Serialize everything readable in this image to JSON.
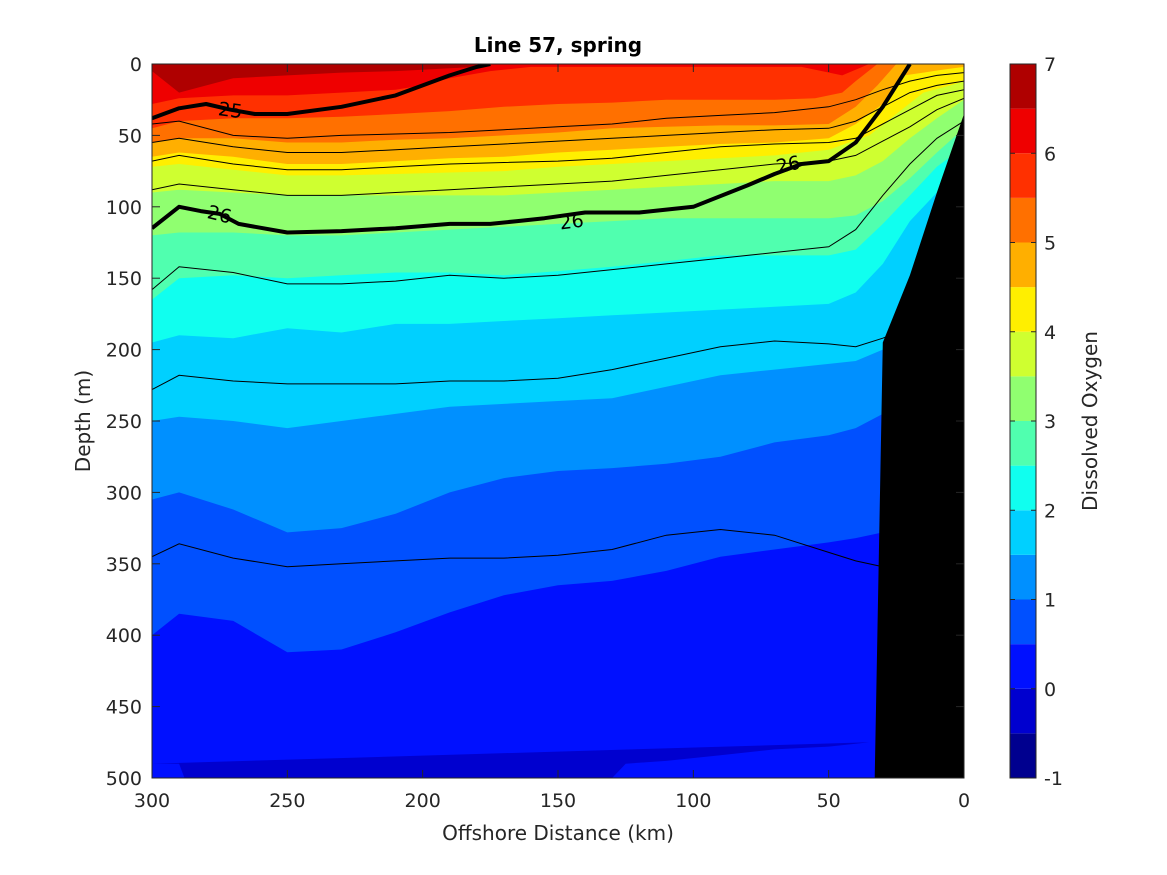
{
  "chart_data": {
    "type": "contour",
    "title": "Line 57, spring",
    "xlabel": "Offshore Distance (km)",
    "ylabel": "Depth (m)",
    "xlim": [
      300,
      0
    ],
    "ylim": [
      500,
      0
    ],
    "x_reversed": true,
    "y_reversed": true,
    "xticks": [
      300,
      250,
      200,
      150,
      100,
      50,
      0
    ],
    "yticks": [
      0,
      50,
      100,
      150,
      200,
      250,
      300,
      350,
      400,
      450,
      500
    ],
    "colorbar": {
      "label": "Dissolved Oxygen",
      "range": [
        -1,
        7
      ],
      "ticks": [
        -1,
        0,
        1,
        2,
        3,
        4,
        5,
        6,
        7
      ],
      "levels": [
        -1,
        -0.5,
        0,
        0.5,
        1,
        1.5,
        2,
        2.5,
        3,
        3.5,
        4,
        4.5,
        5,
        5.5,
        6,
        6.5,
        7
      ],
      "colors": [
        "#00008F",
        "#0000CF",
        "#0010FF",
        "#0050FF",
        "#0090FF",
        "#00D0FF",
        "#10FFEF",
        "#50FFAF",
        "#90FF70",
        "#CFFF30",
        "#FFEF00",
        "#FFAF00",
        "#FF7000",
        "#FF3000",
        "#EF0000",
        "#AF0000"
      ]
    },
    "filled_boundaries": [
      {
        "level": 6.5,
        "x": [
          300,
          290,
          270,
          250,
          230,
          210,
          200,
          190,
          180,
          175
        ],
        "y": [
          5,
          20,
          10,
          8,
          6,
          5,
          4,
          3,
          2,
          0
        ]
      },
      {
        "level": 6.0,
        "x": [
          300,
          290,
          270,
          250,
          230,
          210,
          200,
          190,
          175,
          160,
          140,
          120,
          100,
          80,
          60,
          45,
          35
        ],
        "y": [
          28,
          24,
          22,
          22,
          20,
          18,
          15,
          10,
          5,
          2,
          2,
          2,
          2,
          2,
          2,
          8,
          0
        ]
      },
      {
        "level": 5.5,
        "x": [
          300,
          290,
          270,
          250,
          230,
          210,
          190,
          170,
          150,
          130,
          110,
          90,
          70,
          55,
          45,
          40,
          32
        ],
        "y": [
          45,
          40,
          38,
          38,
          37,
          35,
          33,
          30,
          28,
          27,
          25,
          25,
          25,
          24,
          20,
          12,
          0
        ]
      },
      {
        "level": 5.0,
        "x": [
          300,
          290,
          270,
          250,
          230,
          210,
          190,
          170,
          150,
          130,
          110,
          90,
          70,
          50,
          40,
          32,
          25
        ],
        "y": [
          55,
          52,
          52,
          55,
          55,
          53,
          52,
          50,
          48,
          45,
          44,
          43,
          43,
          42,
          30,
          15,
          0
        ]
      },
      {
        "level": 4.5,
        "x": [
          300,
          290,
          270,
          250,
          230,
          210,
          190,
          170,
          150,
          130,
          110,
          90,
          70,
          50,
          40,
          30,
          22,
          15,
          8,
          0
        ],
        "y": [
          65,
          62,
          65,
          70,
          70,
          68,
          66,
          65,
          62,
          60,
          58,
          56,
          55,
          52,
          42,
          28,
          8,
          6,
          4,
          2
        ]
      },
      {
        "level": 4.0,
        "x": [
          300,
          290,
          270,
          250,
          230,
          210,
          190,
          170,
          150,
          130,
          110,
          90,
          70,
          50,
          35,
          25,
          15,
          5,
          0
        ],
        "y": [
          72,
          70,
          74,
          78,
          78,
          77,
          76,
          75,
          72,
          70,
          68,
          66,
          64,
          60,
          50,
          35,
          20,
          15,
          12
        ]
      },
      {
        "level": 3.5,
        "x": [
          300,
          290,
          270,
          250,
          230,
          210,
          190,
          170,
          150,
          130,
          110,
          90,
          70,
          50,
          40,
          30,
          20,
          10,
          0
        ],
        "y": [
          90,
          88,
          90,
          92,
          92,
          92,
          92,
          92,
          90,
          88,
          86,
          84,
          82,
          82,
          78,
          68,
          52,
          38,
          25
        ]
      },
      {
        "level": 3.0,
        "x": [
          300,
          290,
          270,
          250,
          230,
          210,
          190,
          170,
          150,
          130,
          110,
          90,
          70,
          50,
          40,
          30,
          20,
          10,
          0
        ],
        "y": [
          120,
          118,
          118,
          120,
          120,
          118,
          116,
          114,
          112,
          110,
          108,
          108,
          108,
          108,
          106,
          96,
          80,
          62,
          45
        ]
      },
      {
        "level": 2.5,
        "x": [
          300,
          290,
          270,
          250,
          230,
          210,
          190,
          170,
          150,
          130,
          110,
          90,
          70,
          50,
          40,
          30,
          20,
          10,
          0
        ],
        "y": [
          165,
          150,
          148,
          150,
          148,
          146,
          146,
          148,
          145,
          142,
          138,
          134,
          134,
          134,
          130,
          112,
          92,
          72,
          58
        ]
      },
      {
        "level": 2.0,
        "x": [
          300,
          290,
          270,
          250,
          230,
          210,
          190,
          170,
          150,
          130,
          110,
          90,
          70,
          50,
          40,
          30,
          20,
          10,
          0
        ],
        "y": [
          195,
          190,
          192,
          185,
          188,
          182,
          182,
          180,
          178,
          176,
          174,
          172,
          170,
          168,
          160,
          140,
          110,
          90,
          75
        ]
      },
      {
        "level": 1.5,
        "x": [
          300,
          290,
          270,
          250,
          230,
          210,
          190,
          170,
          150,
          130,
          110,
          90,
          70,
          50,
          40,
          30,
          20,
          10,
          0
        ],
        "y": [
          250,
          247,
          250,
          255,
          250,
          245,
          240,
          238,
          236,
          234,
          226,
          218,
          214,
          210,
          208,
          200,
          180,
          160,
          140
        ]
      },
      {
        "level": 1.0,
        "x": [
          300,
          290,
          270,
          250,
          230,
          210,
          190,
          170,
          150,
          130,
          110,
          90,
          70,
          50,
          40,
          30,
          20,
          10,
          0
        ],
        "y": [
          305,
          300,
          312,
          328,
          325,
          315,
          300,
          290,
          285,
          283,
          280,
          275,
          265,
          260,
          255,
          245,
          230,
          210,
          190
        ]
      },
      {
        "level": 0.5,
        "x": [
          300,
          290,
          270,
          250,
          230,
          210,
          190,
          170,
          150,
          130,
          110,
          90,
          70,
          50,
          40,
          30,
          20,
          10,
          0
        ],
        "y": [
          400,
          385,
          390,
          412,
          410,
          398,
          384,
          372,
          365,
          362,
          355,
          345,
          340,
          335,
          332,
          328,
          320,
          310,
          300
        ]
      },
      {
        "level": 0.0,
        "x": [
          300,
          290,
          288,
          130,
          125,
          110,
          90,
          70,
          50,
          40,
          35
        ],
        "y": [
          490,
          490,
          500,
          500,
          490,
          488,
          484,
          480,
          478,
          476,
          475
        ]
      }
    ],
    "black_contours": [
      {
        "x": [
          300,
          290,
          270,
          250,
          230,
          210,
          190,
          170,
          150,
          130,
          110,
          90,
          70,
          50,
          40,
          30,
          20,
          10,
          0
        ],
        "y": [
          42,
          40,
          50,
          52,
          50,
          49,
          48,
          46,
          44,
          42,
          38,
          36,
          34,
          30,
          25,
          18,
          12,
          8,
          6
        ]
      },
      {
        "x": [
          300,
          290,
          270,
          250,
          230,
          210,
          190,
          170,
          150,
          130,
          110,
          90,
          70,
          50,
          40,
          30,
          20,
          10,
          0
        ],
        "y": [
          55,
          52,
          58,
          62,
          62,
          60,
          58,
          56,
          54,
          52,
          50,
          48,
          46,
          45,
          40,
          30,
          20,
          15,
          12
        ]
      },
      {
        "x": [
          300,
          290,
          270,
          250,
          230,
          210,
          190,
          170,
          150,
          130,
          110,
          90,
          70,
          50,
          40,
          30,
          20,
          10,
          0
        ],
        "y": [
          68,
          64,
          70,
          74,
          74,
          72,
          70,
          69,
          68,
          66,
          62,
          58,
          56,
          55,
          52,
          42,
          32,
          22,
          18
        ]
      },
      {
        "x": [
          300,
          290,
          270,
          250,
          230,
          210,
          190,
          170,
          150,
          130,
          110,
          90,
          70,
          50,
          40,
          30,
          20,
          10,
          0
        ],
        "y": [
          88,
          84,
          88,
          92,
          92,
          90,
          88,
          86,
          84,
          82,
          78,
          74,
          70,
          68,
          64,
          54,
          44,
          32,
          24
        ]
      },
      {
        "x": [
          300,
          290,
          270,
          250,
          230,
          210,
          190,
          170,
          150,
          130,
          110,
          90,
          70,
          50,
          40,
          30,
          20,
          10,
          0
        ],
        "y": [
          158,
          142,
          146,
          154,
          154,
          152,
          148,
          150,
          148,
          144,
          140,
          136,
          132,
          128,
          116,
          92,
          70,
          52,
          40
        ]
      },
      {
        "x": [
          300,
          290,
          270,
          250,
          230,
          210,
          190,
          170,
          150,
          130,
          110,
          90,
          70,
          50,
          40,
          30,
          22
        ],
        "y": [
          228,
          218,
          222,
          224,
          224,
          224,
          222,
          222,
          220,
          214,
          206,
          198,
          194,
          196,
          198,
          192,
          186
        ]
      },
      {
        "x": [
          300,
          290,
          270,
          250,
          230,
          210,
          190,
          170,
          150,
          130,
          110,
          90,
          70,
          50,
          40,
          30
        ],
        "y": [
          345,
          336,
          346,
          352,
          350,
          348,
          346,
          346,
          344,
          340,
          330,
          326,
          330,
          342,
          348,
          352
        ]
      }
    ],
    "thick_contours": [
      {
        "label": "25",
        "label_at": [
          271,
          32
        ],
        "x": [
          300,
          290,
          280,
          271,
          262,
          250,
          230,
          210,
          200,
          190,
          180,
          175
        ],
        "y": [
          38,
          31,
          28,
          32,
          35,
          35,
          30,
          22,
          15,
          8,
          2,
          0
        ]
      },
      {
        "label": "26",
        "label_at": [
          275,
          105
        ],
        "x": [
          300,
          290,
          282,
          275,
          268,
          250,
          230,
          210,
          190,
          175,
          165,
          155,
          140,
          120,
          100,
          80,
          70,
          60,
          50,
          40,
          30,
          25,
          20
        ],
        "y": [
          115,
          100,
          103,
          105,
          112,
          118,
          117,
          115,
          112,
          112,
          110,
          108,
          104,
          104,
          100,
          85,
          77,
          70,
          68,
          55,
          30,
          15,
          0
        ]
      }
    ],
    "bathymetry_region": {
      "x": [
        0,
        10,
        20,
        30,
        33,
        0
      ],
      "y": [
        35,
        90,
        148,
        195,
        500,
        500
      ],
      "color": "#000000"
    }
  }
}
